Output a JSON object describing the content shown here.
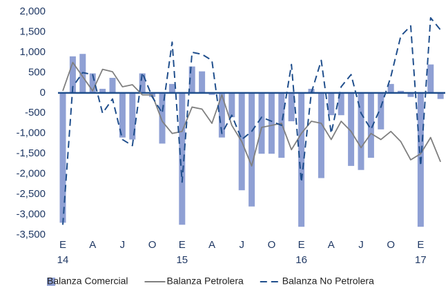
{
  "chart_data": {
    "type": "bar-line",
    "categories": [
      "E",
      null,
      null,
      "A",
      null,
      null,
      "J",
      null,
      null,
      "O",
      null,
      null,
      "E",
      null,
      null,
      "A",
      null,
      null,
      "J",
      null,
      null,
      "O",
      null,
      null,
      "E",
      null,
      null,
      "A",
      null,
      null,
      "J",
      null,
      null,
      "O",
      null,
      null,
      "E",
      null,
      null
    ],
    "year_labels": [
      "14",
      null,
      null,
      null,
      null,
      null,
      null,
      null,
      null,
      null,
      null,
      null,
      "15",
      null,
      null,
      null,
      null,
      null,
      null,
      null,
      null,
      null,
      null,
      null,
      "16",
      null,
      null,
      null,
      null,
      null,
      null,
      null,
      null,
      null,
      null,
      null,
      "17",
      null,
      null
    ],
    "series": [
      {
        "name": "Balanza Comercial",
        "kind": "bar",
        "color": "#8fa0d4",
        "values": [
          -3200,
          900,
          960,
          480,
          100,
          370,
          -1100,
          -1150,
          480,
          -100,
          -1250,
          220,
          -3250,
          650,
          530,
          -50,
          -1100,
          -600,
          -2400,
          -2800,
          -1500,
          -1500,
          -1600,
          -700,
          -3300,
          100,
          -2100,
          -550,
          -550,
          -1800,
          -1900,
          -1600,
          -900,
          220,
          50,
          -100,
          -3300,
          700,
          -150
        ]
      },
      {
        "name": "Balanza Petrolera",
        "kind": "line",
        "color": "#7f7f7f",
        "values": [
          50,
          750,
          400,
          50,
          580,
          520,
          150,
          200,
          -50,
          -50,
          -700,
          -1000,
          -950,
          -350,
          -400,
          -750,
          -50,
          -800,
          -1200,
          -1800,
          -850,
          -800,
          -750,
          -1400,
          -1000,
          -700,
          -750,
          -1150,
          -700,
          -950,
          -1350,
          -1000,
          -1150,
          -950,
          -1200,
          -1650,
          -1500,
          -1100,
          -1700
        ]
      },
      {
        "name": "Balanza No Petrolera",
        "kind": "dashed",
        "color": "#1f4e8c",
        "values": [
          -3250,
          150,
          500,
          450,
          -500,
          -150,
          -1150,
          -1300,
          500,
          -100,
          -500,
          1250,
          -2200,
          1000,
          950,
          800,
          -1000,
          -550,
          -1150,
          -950,
          -600,
          -700,
          -800,
          700,
          -2200,
          0,
          800,
          -1000,
          150,
          450,
          -500,
          -900,
          -350,
          400,
          1400,
          1650,
          -1800,
          1850,
          1550
        ]
      }
    ],
    "ylim": [
      -3500,
      2000
    ],
    "yticks": [
      {
        "value": -3500,
        "label": "-3,500"
      },
      {
        "value": -3000,
        "label": "-3,000"
      },
      {
        "value": -2500,
        "label": "-2,500"
      },
      {
        "value": -2000,
        "label": "-2,000"
      },
      {
        "value": -1500,
        "label": "-1,500"
      },
      {
        "value": -1000,
        "label": "-1,000"
      },
      -500,
      0,
      500,
      {
        "value": 1000,
        "label": "1,000"
      },
      {
        "value": 1500,
        "label": "1,500"
      },
      {
        "value": 2000,
        "label": "2,000"
      }
    ],
    "zero_line_color": "#1f4e8c",
    "legend": "bottom"
  }
}
